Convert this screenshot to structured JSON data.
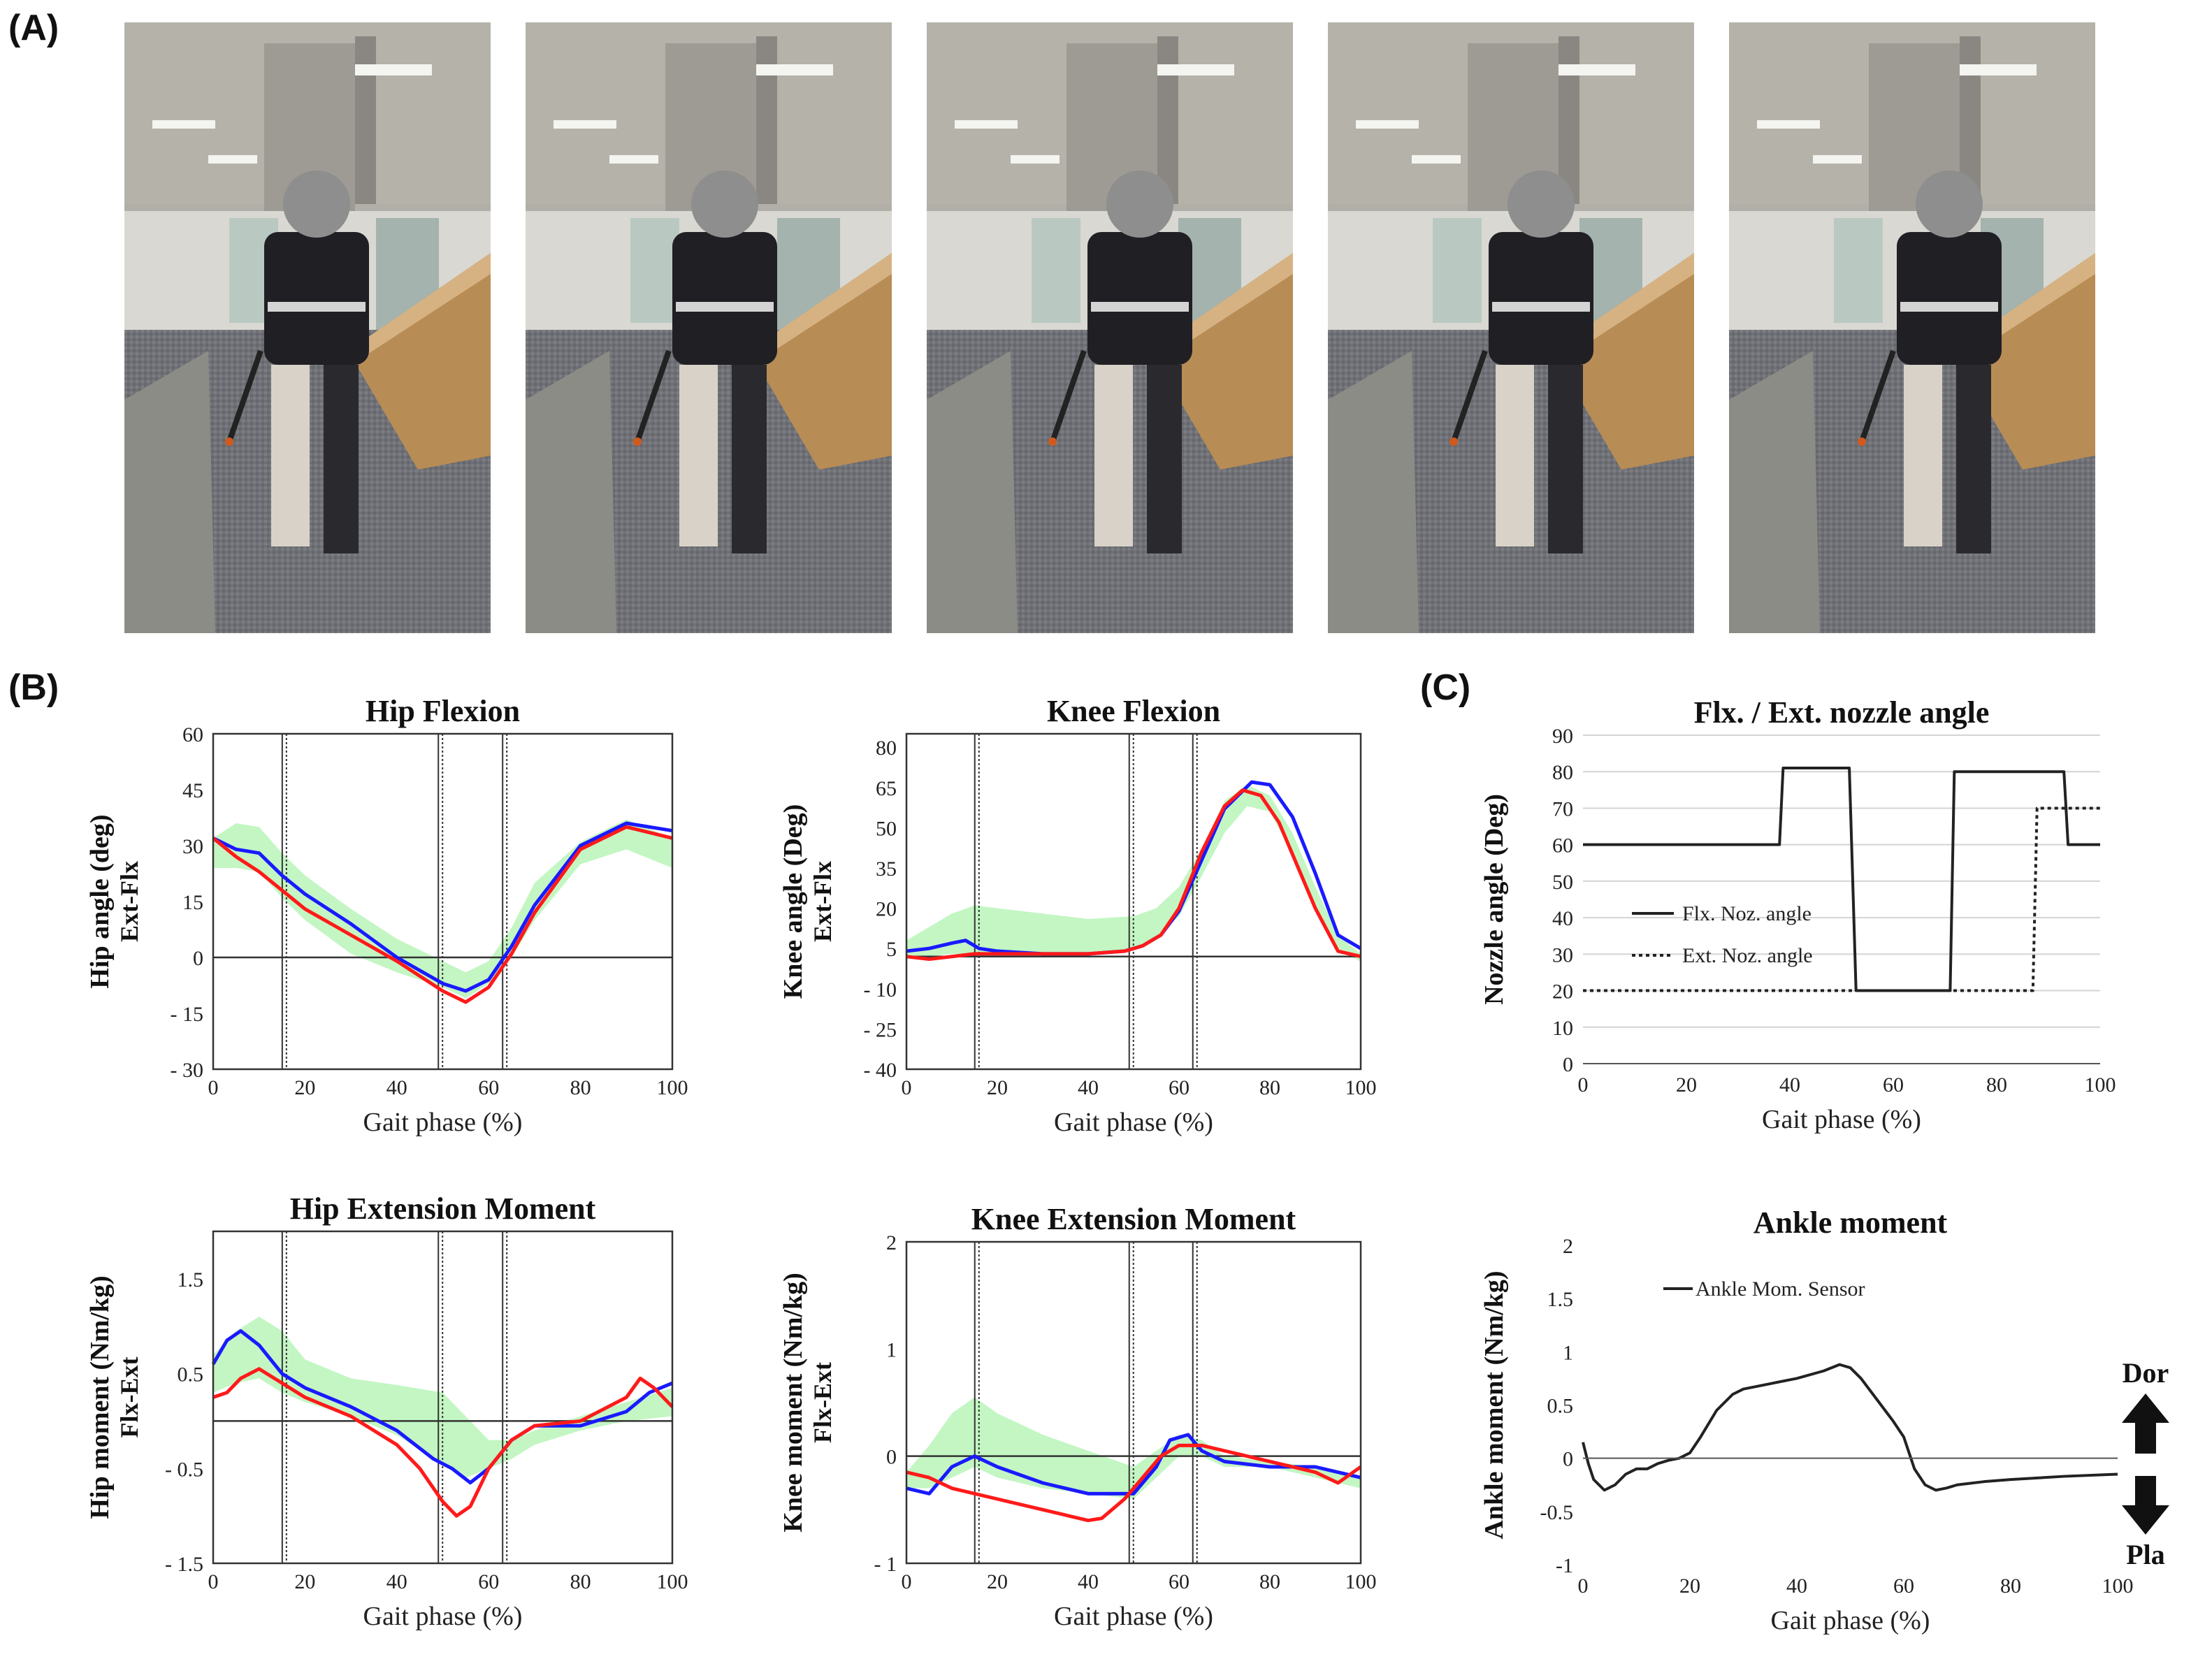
{
  "panels": {
    "a": "(A)",
    "b": "(B)",
    "c": "(C)"
  },
  "photos": {
    "count": 5,
    "offsets": [
      0,
      1,
      2,
      3,
      4
    ]
  },
  "colors": {
    "trial1": "#1a1aff",
    "trial2": "#ff1a1a",
    "band": "#b8f5b8",
    "line": "#222222"
  },
  "chart_data": [
    {
      "type": "line",
      "id": "hip-flexion",
      "title": "Hip Flexion",
      "xlabel": "Gait phase (%)",
      "ylabel": "Hip angle (deg)",
      "ylabel2": "Ext-Flx",
      "xlim": [
        0,
        100
      ],
      "ylim": [
        -30,
        60
      ],
      "xticks": [
        "0",
        "20",
        "40",
        "60",
        "80",
        "100"
      ],
      "xtick_values": [
        0,
        20,
        40,
        60,
        80,
        100
      ],
      "yticks": [
        "60",
        "45",
        "30",
        "15",
        "0",
        "- 15",
        "- 30"
      ],
      "ytick_values": [
        60,
        45,
        30,
        15,
        0,
        -15,
        -30
      ],
      "vlines": [
        15.5,
        49.5,
        63.5
      ],
      "band": {
        "x": [
          0,
          5,
          10,
          15,
          20,
          30,
          40,
          50,
          55,
          60,
          65,
          70,
          80,
          90,
          100
        ],
        "upper": [
          32,
          36,
          35,
          28,
          22,
          13,
          5,
          -1,
          -4,
          -1,
          8,
          20,
          31,
          37,
          32
        ],
        "lower": [
          24,
          24,
          23,
          16,
          10,
          1,
          -4,
          -8,
          -11,
          -7,
          0,
          10,
          25,
          29,
          24
        ]
      },
      "series": [
        {
          "x": [
            0,
            5,
            10,
            15,
            20,
            30,
            40,
            50,
            55,
            60,
            65,
            70,
            80,
            90,
            100
          ],
          "values": [
            32,
            29,
            28,
            22,
            17,
            9,
            0,
            -7,
            -9,
            -6,
            3,
            14,
            30,
            36,
            34
          ]
        },
        {
          "x": [
            0,
            5,
            10,
            15,
            20,
            30,
            40,
            50,
            55,
            60,
            65,
            70,
            80,
            90,
            100
          ],
          "values": [
            32,
            27,
            23,
            18,
            13,
            6,
            -1,
            -9,
            -12,
            -8,
            1,
            12,
            29,
            35,
            32
          ]
        }
      ]
    },
    {
      "type": "line",
      "id": "knee-flexion",
      "title": "Knee Flexion",
      "xlabel": "Gait phase (%)",
      "ylabel": "Knee angle (Deg)",
      "ylabel2": "Ext-Flx",
      "xlim": [
        0,
        100
      ],
      "ylim": [
        -40,
        85
      ],
      "xticks": [
        "0",
        "20",
        "40",
        "60",
        "80",
        "100"
      ],
      "xtick_values": [
        0,
        20,
        40,
        60,
        80,
        100
      ],
      "yticks": [
        "80",
        "65",
        "50",
        "35",
        "20",
        "5",
        "- 10",
        "- 25",
        "- 40"
      ],
      "ytick_values": [
        80,
        65,
        50,
        35,
        20,
        5,
        -10,
        -25,
        -40
      ],
      "hline": 2,
      "vlines": [
        15.5,
        49.5,
        63.5
      ],
      "band": {
        "x": [
          0,
          5,
          10,
          15,
          20,
          30,
          40,
          50,
          55,
          60,
          65,
          70,
          75,
          80,
          85,
          90,
          95,
          100
        ],
        "upper": [
          8,
          13,
          18,
          21,
          20,
          18,
          16,
          17,
          20,
          28,
          42,
          60,
          66,
          62,
          48,
          28,
          10,
          3
        ],
        "lower": [
          2,
          2,
          3,
          3,
          3,
          3,
          3,
          5,
          9,
          17,
          32,
          48,
          58,
          56,
          40,
          20,
          5,
          0
        ]
      },
      "series": [
        {
          "x": [
            0,
            5,
            10,
            13,
            16,
            20,
            30,
            40,
            48,
            52,
            56,
            60,
            65,
            70,
            76,
            80,
            85,
            90,
            95,
            100
          ],
          "values": [
            4,
            5,
            7,
            8,
            5,
            4,
            3,
            3,
            4,
            6,
            10,
            19,
            38,
            57,
            67,
            66,
            54,
            33,
            10,
            5
          ]
        },
        {
          "x": [
            0,
            5,
            10,
            15,
            20,
            30,
            40,
            48,
            52,
            56,
            60,
            65,
            70,
            74,
            78,
            82,
            86,
            90,
            95,
            100
          ],
          "values": [
            2,
            1,
            2,
            3,
            3,
            3,
            3,
            4,
            6,
            10,
            20,
            41,
            58,
            64,
            62,
            52,
            36,
            20,
            4,
            2
          ]
        }
      ]
    },
    {
      "type": "line",
      "id": "flx-ext-nozzle-angle",
      "title": "Flx. / Ext. nozzle angle",
      "xlabel": "Gait phase (%)",
      "ylabel": "Nozzle angle (Deg)",
      "xlim": [
        0,
        100
      ],
      "ylim": [
        0,
        90
      ],
      "xticks": [
        "0",
        "20",
        "40",
        "60",
        "80",
        "100"
      ],
      "xtick_values": [
        0,
        20,
        40,
        60,
        80,
        100
      ],
      "yticks": [
        "90",
        "80",
        "70",
        "60",
        "50",
        "40",
        "30",
        "20",
        "10",
        "0"
      ],
      "ytick_values": [
        90,
        80,
        70,
        60,
        50,
        40,
        30,
        20,
        10,
        0
      ],
      "gridlines": true,
      "legend": [
        "Flx. Noz. angle",
        "Ext. Noz. angle"
      ],
      "series": [
        {
          "name": "Flx. Noz. angle",
          "style": "solid",
          "x": [
            0,
            38,
            38.7,
            51.5,
            52.8,
            71,
            71.8,
            93,
            93.8,
            100
          ],
          "values": [
            60,
            60,
            81,
            81,
            20,
            20,
            80,
            80,
            60,
            60
          ]
        },
        {
          "name": "Ext. Noz. angle",
          "style": "dotted",
          "x": [
            0,
            87,
            87.8,
            100
          ],
          "values": [
            20,
            20,
            70,
            70
          ]
        }
      ]
    },
    {
      "type": "line",
      "id": "hip-extension-moment",
      "title": "Hip Extension Moment",
      "xlabel": "Gait phase (%)",
      "ylabel": "Hip moment (Nm/kg)",
      "ylabel2": "Flx-Ext",
      "xlim": [
        0,
        100
      ],
      "ylim": [
        -1.5,
        2
      ],
      "xticks": [
        "0",
        "20",
        "40",
        "60",
        "80",
        "100"
      ],
      "xtick_values": [
        0,
        20,
        40,
        60,
        80,
        100
      ],
      "yticks": [
        "1.5",
        "0.5",
        "- 0.5",
        "- 1.5"
      ],
      "ytick_values": [
        1.5,
        0.5,
        -0.5,
        -1.5
      ],
      "vlines": [
        15.5,
        49.5,
        63.5
      ],
      "band": {
        "x": [
          0,
          5,
          10,
          15,
          20,
          30,
          40,
          50,
          55,
          60,
          65,
          70,
          80,
          90,
          100
        ],
        "upper": [
          0.7,
          0.95,
          1.1,
          0.95,
          0.65,
          0.45,
          0.38,
          0.3,
          0.05,
          -0.2,
          -0.2,
          -0.1,
          0.05,
          0.2,
          0.35
        ],
        "lower": [
          0.3,
          0.4,
          0.45,
          0.3,
          0.2,
          0.05,
          -0.15,
          -0.45,
          -0.6,
          -0.5,
          -0.4,
          -0.25,
          -0.1,
          0.0,
          0.05
        ]
      },
      "series": [
        {
          "x": [
            0,
            3,
            6,
            10,
            15,
            20,
            30,
            40,
            48,
            52,
            56,
            60,
            65,
            70,
            80,
            90,
            95,
            100
          ],
          "values": [
            0.6,
            0.85,
            0.95,
            0.8,
            0.5,
            0.35,
            0.15,
            -0.1,
            -0.4,
            -0.5,
            -0.65,
            -0.5,
            -0.2,
            -0.05,
            -0.05,
            0.1,
            0.3,
            0.4
          ]
        },
        {
          "x": [
            0,
            3,
            6,
            10,
            15,
            20,
            30,
            40,
            45,
            50,
            53,
            56,
            60,
            65,
            70,
            80,
            90,
            93,
            96,
            100
          ],
          "values": [
            0.25,
            0.3,
            0.45,
            0.55,
            0.4,
            0.25,
            0.05,
            -0.25,
            -0.5,
            -0.85,
            -1.0,
            -0.9,
            -0.5,
            -0.2,
            -0.05,
            0.0,
            0.25,
            0.45,
            0.35,
            0.15
          ]
        }
      ]
    },
    {
      "type": "line",
      "id": "knee-extension-moment",
      "title": "Knee Extension Moment",
      "xlabel": "Gait phase (%)",
      "ylabel": "Knee moment (Nm/kg)",
      "ylabel2": "Flx-Ext",
      "xlim": [
        0,
        100
      ],
      "ylim": [
        -1,
        2
      ],
      "xticks": [
        "0",
        "20",
        "40",
        "60",
        "80",
        "100"
      ],
      "xtick_values": [
        0,
        20,
        40,
        60,
        80,
        100
      ],
      "yticks": [
        "2",
        "1",
        "0",
        "- 1"
      ],
      "ytick_values": [
        2,
        1,
        0,
        -1
      ],
      "vlines": [
        15.5,
        49.5,
        63.5
      ],
      "band": {
        "x": [
          0,
          5,
          10,
          15,
          20,
          30,
          40,
          50,
          55,
          60,
          65,
          70,
          80,
          90,
          100
        ],
        "upper": [
          -0.15,
          0.1,
          0.4,
          0.55,
          0.4,
          0.2,
          0.05,
          -0.1,
          0.05,
          0.2,
          0.15,
          0.0,
          -0.05,
          -0.1,
          -0.2
        ],
        "lower": [
          -0.3,
          -0.3,
          -0.2,
          -0.1,
          -0.2,
          -0.3,
          -0.35,
          -0.4,
          -0.2,
          0.0,
          0.0,
          -0.1,
          -0.1,
          -0.2,
          -0.3
        ]
      },
      "series": [
        {
          "x": [
            0,
            5,
            10,
            15,
            20,
            30,
            40,
            50,
            55,
            58,
            62,
            65,
            70,
            80,
            90,
            100
          ],
          "values": [
            -0.3,
            -0.35,
            -0.1,
            0.0,
            -0.1,
            -0.25,
            -0.35,
            -0.35,
            -0.1,
            0.15,
            0.2,
            0.05,
            -0.05,
            -0.1,
            -0.1,
            -0.2
          ]
        },
        {
          "x": [
            0,
            5,
            10,
            15,
            20,
            30,
            40,
            43,
            48,
            52,
            56,
            60,
            65,
            70,
            80,
            90,
            95,
            100
          ],
          "values": [
            -0.15,
            -0.2,
            -0.3,
            -0.35,
            -0.4,
            -0.5,
            -0.6,
            -0.58,
            -0.4,
            -0.2,
            0.0,
            0.1,
            0.1,
            0.05,
            -0.05,
            -0.15,
            -0.25,
            -0.1
          ]
        }
      ]
    },
    {
      "type": "line",
      "id": "ankle-moment",
      "title": "Ankle moment",
      "xlabel": "Gait phase (%)",
      "ylabel": "Ankle moment (Nm/kg)",
      "xlim": [
        0,
        100
      ],
      "ylim": [
        -1,
        2
      ],
      "xticks": [
        "0",
        "20",
        "40",
        "60",
        "80",
        "100"
      ],
      "xtick_values": [
        0,
        20,
        40,
        60,
        80,
        100
      ],
      "yticks": [
        "2",
        "1.5",
        "1",
        "0.5",
        "0",
        "-0.5",
        "-1"
      ],
      "ytick_values": [
        2,
        1.5,
        1,
        0.5,
        0,
        -0.5,
        -1
      ],
      "legend": [
        "Ankle Mom. Sensor"
      ],
      "arrow_labels": {
        "up": "Dor",
        "down": "Pla"
      },
      "series": [
        {
          "name": "Ankle Mom. Sensor",
          "x": [
            0,
            1,
            2,
            4,
            6,
            8,
            10,
            12,
            14,
            16,
            18,
            20,
            22,
            25,
            28,
            30,
            35,
            40,
            45,
            48,
            50,
            52,
            55,
            58,
            60,
            62,
            64,
            66,
            68,
            70,
            75,
            80,
            90,
            100
          ],
          "values": [
            0.15,
            -0.05,
            -0.2,
            -0.3,
            -0.25,
            -0.15,
            -0.1,
            -0.1,
            -0.05,
            -0.02,
            0.0,
            0.05,
            0.2,
            0.45,
            0.6,
            0.65,
            0.7,
            0.75,
            0.82,
            0.88,
            0.85,
            0.75,
            0.55,
            0.35,
            0.2,
            -0.1,
            -0.25,
            -0.3,
            -0.28,
            -0.25,
            -0.22,
            -0.2,
            -0.17,
            -0.15
          ]
        }
      ]
    }
  ]
}
